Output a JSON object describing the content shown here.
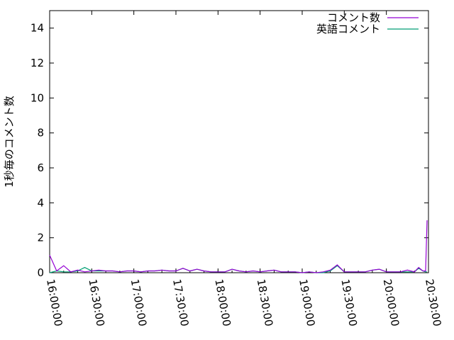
{
  "chart_data": {
    "type": "line",
    "title": "",
    "xlabel": "",
    "ylabel": "1秒毎のコメント数",
    "xlim": [
      "16:00:00",
      "20:30:00"
    ],
    "ylim": [
      0,
      15
    ],
    "xticks": [
      "16:00:00",
      "16:30:00",
      "17:00:00",
      "17:30:00",
      "18:00:00",
      "18:30:00",
      "19:00:00",
      "19:30:00",
      "20:00:00",
      "20:30:00"
    ],
    "yticks": [
      0,
      2,
      4,
      6,
      8,
      10,
      12,
      14
    ],
    "grid": false,
    "legend_position": "top-right",
    "x": [
      "16:00",
      "16:05",
      "16:10",
      "16:15",
      "16:20",
      "16:25",
      "16:30",
      "16:35",
      "16:40",
      "16:45",
      "16:50",
      "16:55",
      "17:00",
      "17:05",
      "17:10",
      "17:15",
      "17:20",
      "17:25",
      "17:30",
      "17:35",
      "17:40",
      "17:45",
      "17:50",
      "17:55",
      "18:00",
      "18:05",
      "18:10",
      "18:15",
      "18:20",
      "18:25",
      "18:30",
      "18:35",
      "18:40",
      "18:45",
      "18:50",
      "18:55",
      "19:00",
      "19:05",
      "19:10",
      "19:15",
      "19:20",
      "19:25",
      "19:30",
      "19:35",
      "19:40",
      "19:45",
      "19:50",
      "19:55",
      "20:00",
      "20:05",
      "20:10",
      "20:15",
      "20:20",
      "20:23",
      "20:26",
      "20:28",
      "20:29"
    ],
    "series": [
      {
        "name": "コメント数",
        "color": "#9400d3",
        "values": [
          1.0,
          0.1,
          0.4,
          0.05,
          0.15,
          0.05,
          0.1,
          0.15,
          0.1,
          0.1,
          0.05,
          0.1,
          0.1,
          0.05,
          0.1,
          0.1,
          0.15,
          0.1,
          0.1,
          0.25,
          0.1,
          0.2,
          0.1,
          0.05,
          0.05,
          0.05,
          0.2,
          0.1,
          0.05,
          0.1,
          0.05,
          0.1,
          0.15,
          0.05,
          0.05,
          0.05,
          0,
          0.05,
          0,
          0.05,
          0.15,
          0.45,
          0.05,
          0.05,
          0.05,
          0.05,
          0.15,
          0.2,
          0.05,
          0.05,
          0.05,
          0.15,
          0.05,
          0.3,
          0.1,
          0.1,
          3.0
        ]
      },
      {
        "name": "英語コメント",
        "color": "#009e73",
        "values": [
          0.0,
          0.1,
          0.05,
          0.05,
          0.1,
          0.3,
          0.1,
          0.1,
          0.1,
          0.1,
          0.05,
          0.1,
          0.1,
          0.05,
          0.1,
          0.1,
          0.15,
          0.1,
          0.1,
          0.25,
          0.1,
          0.2,
          0.1,
          0.05,
          0.05,
          0.05,
          0.2,
          0.1,
          0.05,
          0.1,
          0.05,
          0.1,
          0.15,
          0.05,
          0.05,
          0.05,
          0,
          0.05,
          0,
          0.0,
          0.1,
          0.4,
          0.05,
          0.05,
          0.05,
          0.05,
          0.15,
          0.2,
          0.05,
          0.05,
          0.05,
          0.05,
          0.05,
          0.25,
          0.1,
          0.05,
          0.05
        ]
      }
    ]
  }
}
